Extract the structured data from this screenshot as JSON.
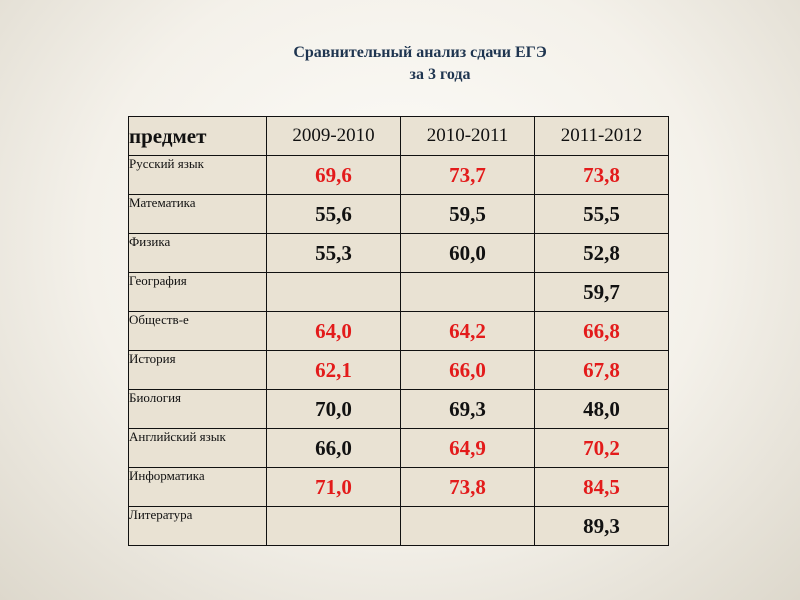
{
  "title": {
    "line1": "Сравнительный анализ сдачи ЕГЭ",
    "line2": "за 3 года"
  },
  "colors": {
    "red": "#e31b1b",
    "black": "#111111",
    "table_bg": "#e9e2d3",
    "title": "#1f3550"
  },
  "table": {
    "header": [
      "предмет",
      "2009-2010",
      "2010-2011",
      "2011-2012"
    ],
    "rows": [
      {
        "subject": "Русский язык",
        "values": [
          {
            "v": "69,6",
            "c": "red"
          },
          {
            "v": "73,7",
            "c": "red"
          },
          {
            "v": "73,8",
            "c": "red"
          }
        ]
      },
      {
        "subject": "Математика",
        "values": [
          {
            "v": "55,6",
            "c": "black"
          },
          {
            "v": "59,5",
            "c": "black"
          },
          {
            "v": "55,5",
            "c": "black"
          }
        ]
      },
      {
        "subject": "Физика",
        "values": [
          {
            "v": "55,3",
            "c": "black"
          },
          {
            "v": "60,0",
            "c": "black"
          },
          {
            "v": "52,8",
            "c": "black"
          }
        ]
      },
      {
        "subject": "География",
        "values": [
          {
            "v": "",
            "c": "black"
          },
          {
            "v": "",
            "c": "black"
          },
          {
            "v": "59,7",
            "c": "black"
          }
        ]
      },
      {
        "subject": "Обществ-е",
        "values": [
          {
            "v": "64,0",
            "c": "red"
          },
          {
            "v": "64,2",
            "c": "red"
          },
          {
            "v": "66,8",
            "c": "red"
          }
        ]
      },
      {
        "subject": "История",
        "values": [
          {
            "v": "62,1",
            "c": "red"
          },
          {
            "v": "66,0",
            "c": "red"
          },
          {
            "v": "67,8",
            "c": "red"
          }
        ]
      },
      {
        "subject": "Биология",
        "values": [
          {
            "v": "70,0",
            "c": "black"
          },
          {
            "v": "69,3",
            "c": "black"
          },
          {
            "v": "48,0",
            "c": "black"
          }
        ]
      },
      {
        "subject": "Английский язык",
        "values": [
          {
            "v": "66,0",
            "c": "black"
          },
          {
            "v": "64,9",
            "c": "red"
          },
          {
            "v": "70,2",
            "c": "red"
          }
        ]
      },
      {
        "subject": "Информатика",
        "values": [
          {
            "v": "71,0",
            "c": "red"
          },
          {
            "v": "73,8",
            "c": "red"
          },
          {
            "v": "84,5",
            "c": "red"
          }
        ]
      },
      {
        "subject": "Литература",
        "values": [
          {
            "v": "",
            "c": "black"
          },
          {
            "v": "",
            "c": "black"
          },
          {
            "v": "89,3",
            "c": "black"
          }
        ]
      }
    ]
  }
}
